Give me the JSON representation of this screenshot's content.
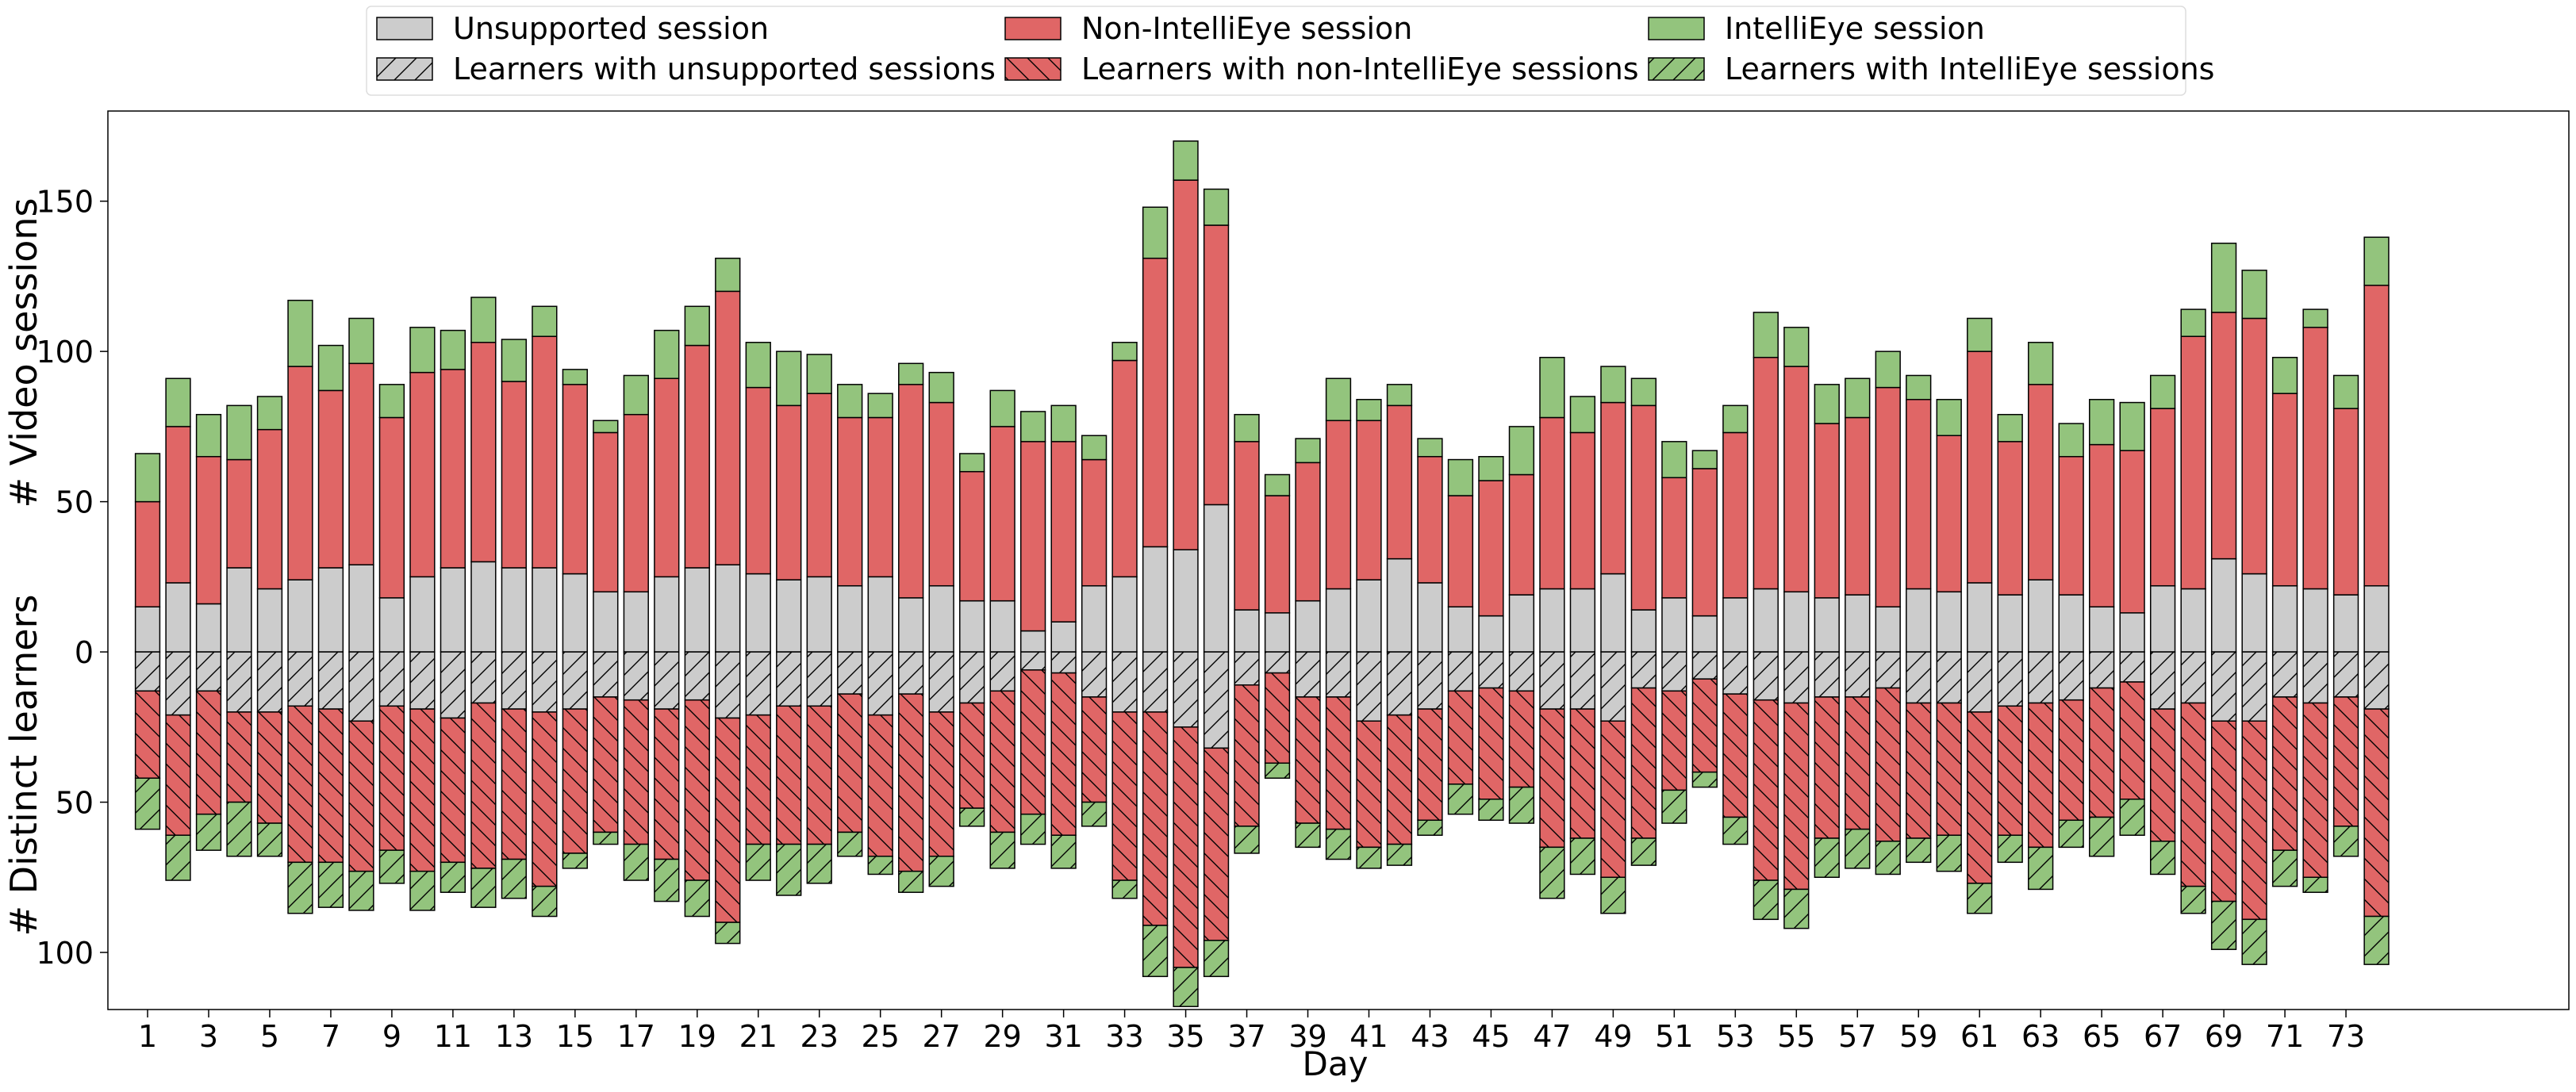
{
  "chart_data": {
    "type": "bar",
    "xlabel": "Day",
    "ylabel_top": "# Video sessions",
    "ylabel_bottom": "# Distinct learners",
    "x_tick_labels": [
      "1",
      "3",
      "5",
      "7",
      "9",
      "11",
      "13",
      "15",
      "17",
      "19",
      "21",
      "23",
      "25",
      "27",
      "29",
      "31",
      "33",
      "35",
      "37",
      "39",
      "41",
      "43",
      "45",
      "47",
      "49",
      "51",
      "53",
      "55",
      "57",
      "59",
      "61",
      "63",
      "65",
      "67",
      "69",
      "71",
      "73"
    ],
    "y_tick_labels": [
      "150",
      "100",
      "50",
      "0",
      "50",
      "100"
    ],
    "y_tick_values": [
      150,
      100,
      50,
      0,
      -50,
      -100
    ],
    "ylim": [
      -119,
      180
    ],
    "xlim": [
      -1.3,
      79.3
    ],
    "grid": false,
    "legend_position": "top-center-outside",
    "colors": {
      "unsupported": "#cccccc",
      "non_intellieye": "#e06666",
      "intellieye": "#93c47d",
      "edge": "#000000"
    },
    "legend": [
      {
        "label": "Unsupported session",
        "color": "#cccccc",
        "hatch": false
      },
      {
        "label": "Learners with unsupported sessions",
        "color": "#cccccc",
        "hatch": true
      },
      {
        "label": "Non-IntelliEye session",
        "color": "#e06666",
        "hatch": false
      },
      {
        "label": "Learners with non-IntelliEye sessions",
        "color": "#e06666",
        "hatch": true
      },
      {
        "label": "IntelliEye session",
        "color": "#93c47d",
        "hatch": false
      },
      {
        "label": "Learners with IntelliEye sessions",
        "color": "#93c47d",
        "hatch": true
      }
    ],
    "days": [
      1,
      2,
      3,
      4,
      5,
      6,
      7,
      8,
      9,
      10,
      11,
      12,
      13,
      14,
      15,
      16,
      17,
      18,
      19,
      20,
      21,
      22,
      23,
      24,
      25,
      26,
      27,
      28,
      29,
      30,
      31,
      32,
      33,
      34,
      35,
      36,
      37,
      38,
      39,
      40,
      41,
      42,
      43,
      44,
      45,
      46,
      47,
      48,
      49,
      50,
      51,
      52,
      53,
      54,
      55,
      56,
      57,
      58,
      59,
      60,
      61,
      62,
      63,
      64,
      65,
      66,
      67,
      68,
      69,
      70,
      71,
      72,
      73,
      74
    ],
    "series": [
      {
        "name": "Unsupported session",
        "values": [
          15,
          23,
          16,
          28,
          21,
          24,
          28,
          29,
          18,
          25,
          28,
          30,
          28,
          28,
          26,
          20,
          20,
          25,
          28,
          29,
          26,
          24,
          25,
          22,
          25,
          18,
          22,
          17,
          17,
          7,
          10,
          22,
          25,
          35,
          34,
          49,
          14,
          13,
          17,
          21,
          24,
          31,
          23,
          15,
          12,
          19,
          21,
          21,
          26,
          14,
          18,
          12,
          18,
          21,
          20,
          18,
          19,
          15,
          21,
          20,
          23,
          19,
          24,
          19,
          15,
          13,
          22,
          21,
          31,
          26,
          22,
          21,
          19,
          22
        ]
      },
      {
        "name": "Non-IntelliEye session",
        "values": [
          35,
          52,
          49,
          36,
          53,
          71,
          59,
          67,
          60,
          68,
          66,
          73,
          62,
          77,
          63,
          53,
          59,
          66,
          74,
          91,
          62,
          58,
          61,
          56,
          53,
          71,
          61,
          43,
          58,
          63,
          60,
          42,
          72,
          96,
          123,
          93,
          56,
          39,
          46,
          56,
          53,
          51,
          42,
          37,
          45,
          40,
          57,
          52,
          57,
          68,
          40,
          49,
          55,
          77,
          75,
          58,
          59,
          73,
          63,
          52,
          77,
          51,
          65,
          46,
          54,
          54,
          59,
          84,
          82,
          85,
          64,
          87,
          62,
          100
        ]
      },
      {
        "name": "IntelliEye session",
        "values": [
          16,
          16,
          14,
          18,
          11,
          22,
          15,
          15,
          11,
          15,
          13,
          15,
          14,
          10,
          5,
          4,
          13,
          16,
          13,
          11,
          15,
          18,
          13,
          11,
          8,
          7,
          10,
          6,
          12,
          10,
          12,
          8,
          6,
          17,
          13,
          12,
          9,
          7,
          8,
          14,
          7,
          7,
          6,
          12,
          8,
          16,
          20,
          12,
          12,
          9,
          12,
          6,
          9,
          15,
          13,
          13,
          13,
          12,
          8,
          12,
          11,
          9,
          14,
          11,
          15,
          16,
          11,
          9,
          23,
          16,
          12,
          6,
          11,
          16
        ]
      },
      {
        "name": "Learners with unsupported sessions",
        "values": [
          13,
          21,
          13,
          20,
          20,
          18,
          19,
          23,
          18,
          19,
          22,
          17,
          19,
          20,
          19,
          15,
          16,
          19,
          16,
          22,
          21,
          18,
          18,
          14,
          21,
          14,
          20,
          17,
          13,
          6,
          7,
          15,
          20,
          20,
          25,
          32,
          11,
          7,
          15,
          15,
          23,
          21,
          19,
          13,
          12,
          13,
          19,
          19,
          23,
          12,
          13,
          9,
          14,
          16,
          17,
          15,
          15,
          12,
          17,
          17,
          20,
          18,
          17,
          16,
          12,
          10,
          19,
          17,
          23,
          23,
          15,
          17,
          15,
          19
        ]
      },
      {
        "name": "Learners with non-IntelliEye sessions",
        "values": [
          29,
          40,
          41,
          30,
          37,
          52,
          51,
          50,
          48,
          54,
          48,
          55,
          50,
          58,
          48,
          45,
          48,
          50,
          60,
          68,
          43,
          46,
          46,
          46,
          47,
          59,
          48,
          35,
          47,
          48,
          54,
          35,
          56,
          71,
          80,
          64,
          47,
          30,
          42,
          44,
          42,
          43,
          37,
          31,
          37,
          32,
          46,
          43,
          52,
          50,
          33,
          31,
          41,
          60,
          62,
          47,
          44,
          51,
          45,
          44,
          57,
          43,
          48,
          40,
          43,
          39,
          44,
          61,
          60,
          66,
          51,
          58,
          43,
          69
        ]
      },
      {
        "name": "Learners with IntelliEye sessions",
        "values": [
          17,
          15,
          12,
          18,
          11,
          17,
          15,
          13,
          11,
          13,
          10,
          13,
          13,
          10,
          5,
          4,
          12,
          14,
          12,
          7,
          12,
          17,
          13,
          8,
          6,
          7,
          10,
          6,
          12,
          10,
          11,
          8,
          6,
          17,
          13,
          12,
          9,
          5,
          8,
          10,
          7,
          7,
          5,
          10,
          7,
          12,
          17,
          12,
          12,
          9,
          11,
          5,
          9,
          13,
          13,
          13,
          13,
          11,
          8,
          12,
          10,
          9,
          14,
          9,
          13,
          12,
          11,
          9,
          16,
          15,
          12,
          5,
          10,
          16
        ]
      }
    ]
  }
}
